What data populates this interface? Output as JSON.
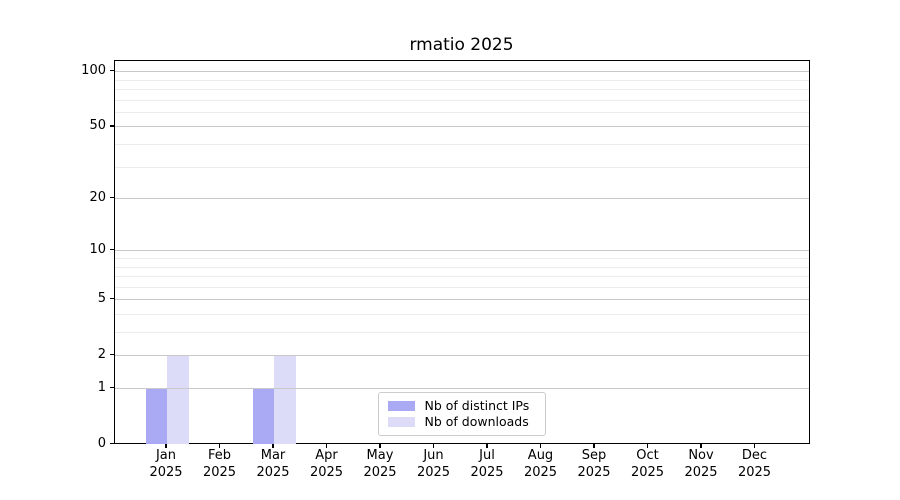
{
  "chart_data": {
    "type": "bar",
    "title": "rmatio 2025",
    "year": "2025",
    "categories": [
      "Jan",
      "Feb",
      "Mar",
      "Apr",
      "May",
      "Jun",
      "Jul",
      "Aug",
      "Sep",
      "Oct",
      "Nov",
      "Dec"
    ],
    "series": [
      {
        "name": "Nb of distinct IPs",
        "color": "#a9a9f4",
        "values": [
          1,
          0,
          1,
          0,
          0,
          0,
          0,
          0,
          0,
          0,
          0,
          0
        ]
      },
      {
        "name": "Nb of downloads",
        "color": "#dcdcf9",
        "values": [
          2,
          0,
          2,
          0,
          0,
          0,
          0,
          0,
          0,
          0,
          0,
          0
        ]
      }
    ],
    "yscale": "log10(1+value)",
    "ylim": [
      0,
      115
    ],
    "yticks": [
      0,
      1,
      2,
      5,
      10,
      20,
      50,
      100
    ],
    "yticks_minor": [
      3,
      4,
      6,
      7,
      8,
      9,
      30,
      40,
      60,
      70,
      80,
      90
    ],
    "grid": "horizontal",
    "legend_position": "lower center",
    "colors": {
      "major_grid": "#c9c9c9",
      "minor_grid": "#ececec",
      "spine": "#000000",
      "background": "#ffffff"
    }
  }
}
